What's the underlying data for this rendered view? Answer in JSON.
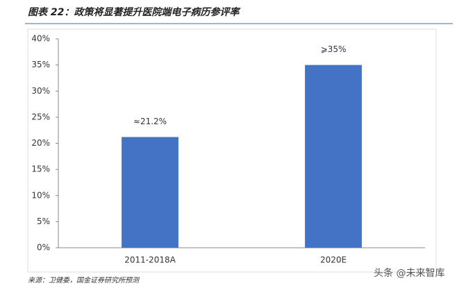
{
  "chart_data": {
    "type": "bar",
    "title": "图表 22：政策将显著提升医院端电子病历参评率",
    "categories": [
      "2011-2018A",
      "2020E"
    ],
    "values": [
      21.2,
      35
    ],
    "value_labels": [
      "≈21.2%",
      "⩾35%"
    ],
    "color": "#4472c4",
    "ylim": [
      0,
      40
    ],
    "yticks": [
      {
        "value": 0,
        "label": "0%"
      },
      {
        "value": 5,
        "label": "5%"
      },
      {
        "value": 10,
        "label": "10%"
      },
      {
        "value": 15,
        "label": "15%"
      },
      {
        "value": 20,
        "label": "20%"
      },
      {
        "value": 25,
        "label": "25%"
      },
      {
        "value": 30,
        "label": "30%"
      },
      {
        "value": 35,
        "label": "35%"
      },
      {
        "value": 40,
        "label": "40%"
      }
    ],
    "source": "来源：卫健委，国金证券研究所预测",
    "watermark": "头条 @未来智库"
  }
}
